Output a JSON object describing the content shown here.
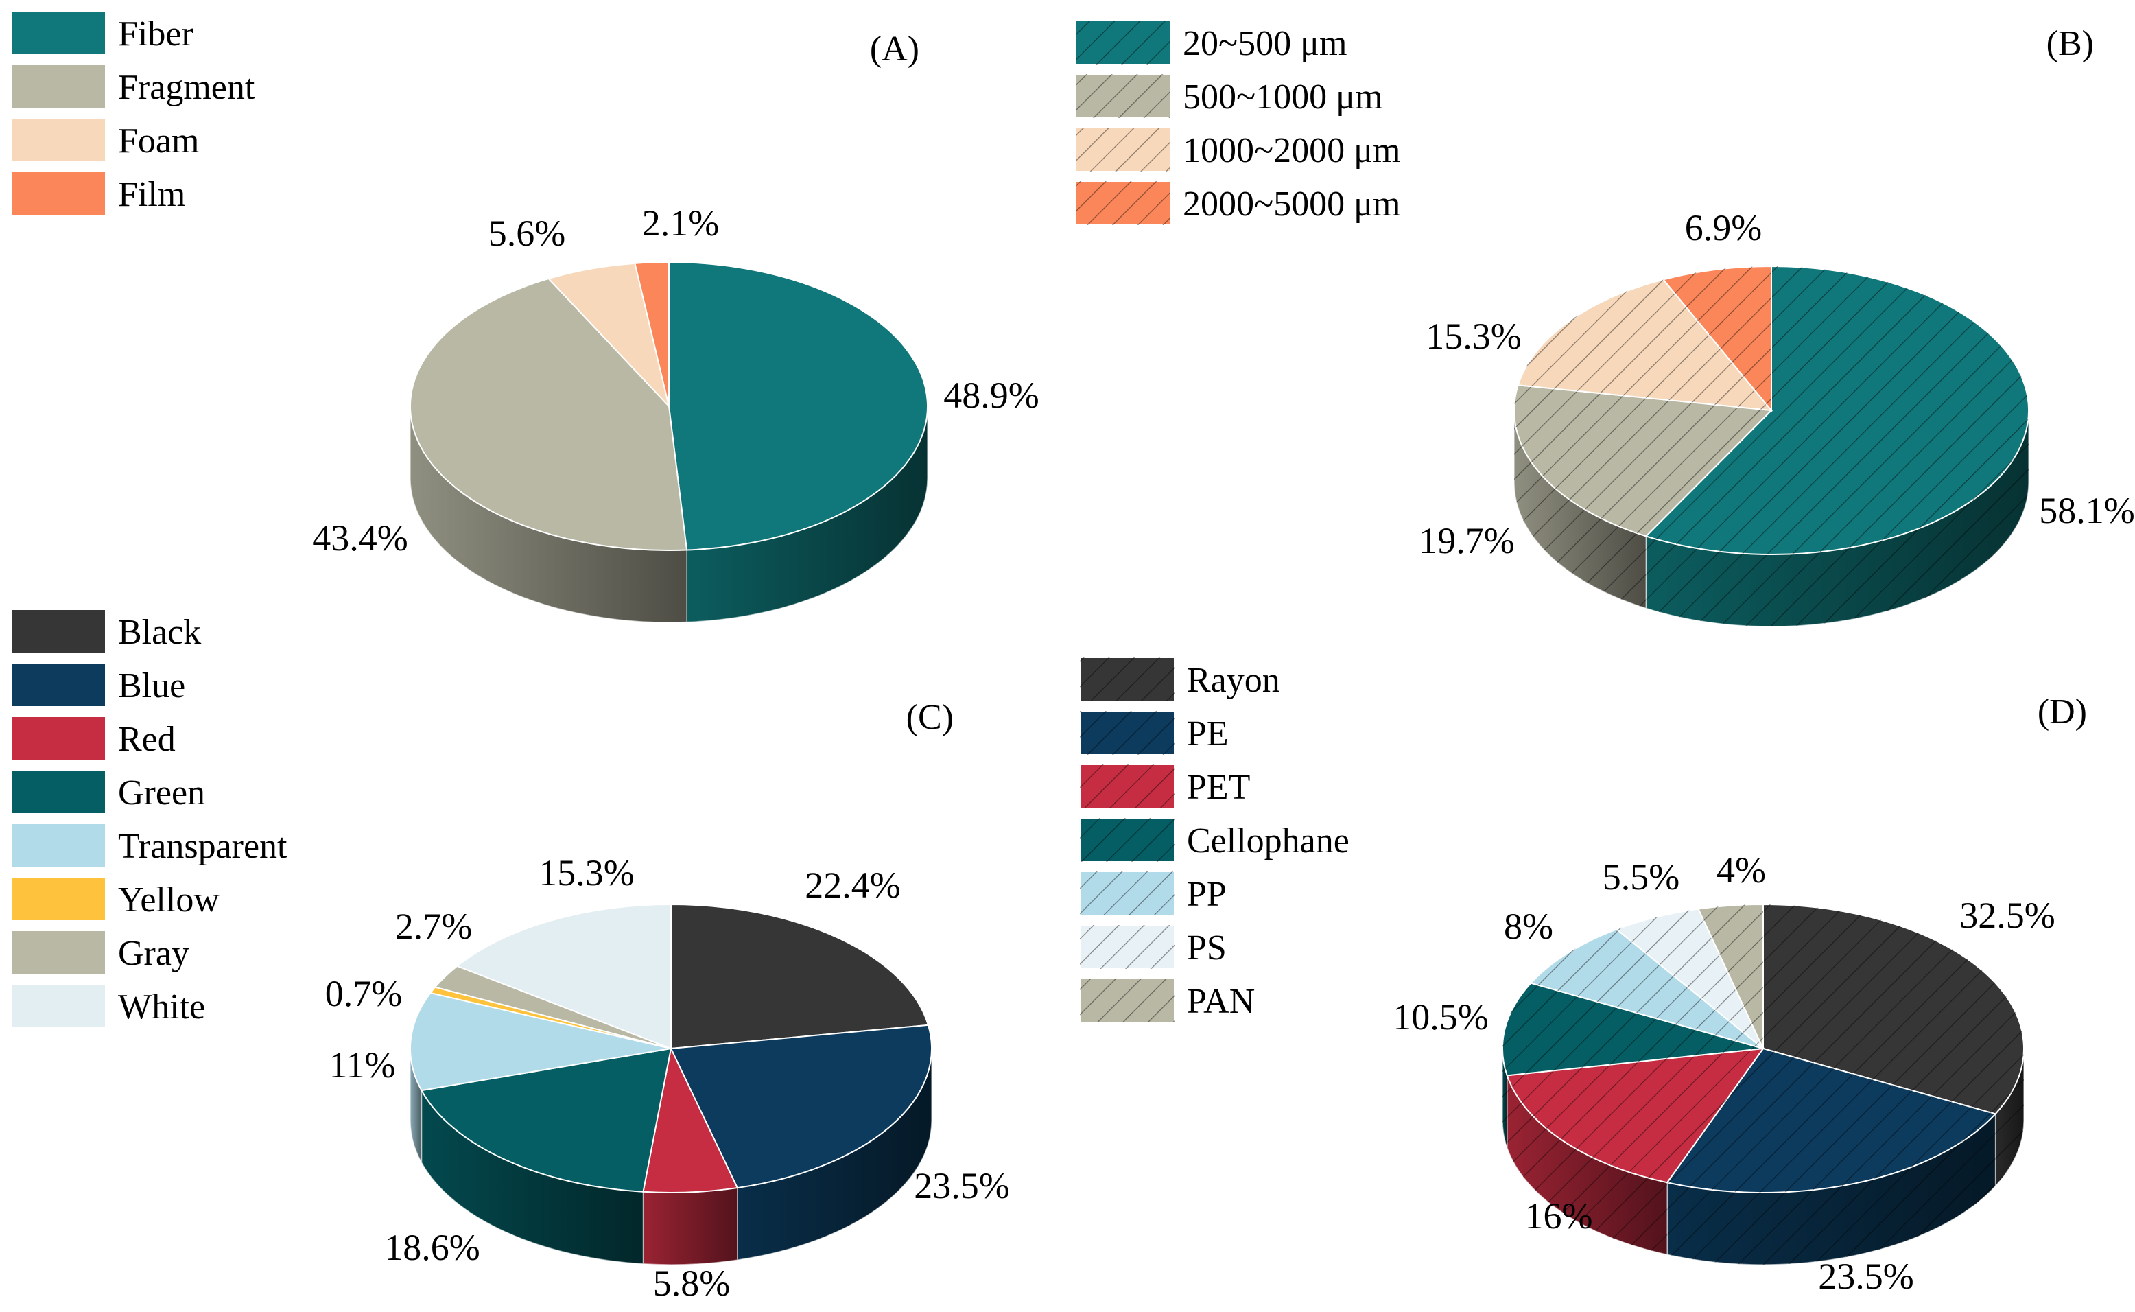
{
  "chart_data": [
    {
      "panel": "(A)",
      "type": "pie",
      "hatched": false,
      "categories": [
        "Fiber",
        "Fragment",
        "Foam",
        "Film"
      ],
      "values": [
        48.9,
        43.4,
        5.6,
        2.1
      ],
      "value_labels": [
        "48.9%",
        "43.4%",
        "5.6%",
        "2.1%"
      ],
      "colors": [
        "#10777a",
        "#b9b8a5",
        "#f7d8bb",
        "#fa8659"
      ],
      "legend_position": "top-left"
    },
    {
      "panel": "(B)",
      "type": "pie",
      "hatched": true,
      "categories": [
        "20~500 μm",
        "500~1000 μm",
        "1000~2000 μm",
        "2000~5000 μm"
      ],
      "values": [
        58.1,
        19.7,
        15.3,
        6.9
      ],
      "value_labels": [
        "58.1%",
        "19.7%",
        "15.3%",
        "6.9%"
      ],
      "colors": [
        "#10777a",
        "#b9b8a5",
        "#f7d8bb",
        "#fa8659"
      ],
      "legend_position": "top-center"
    },
    {
      "panel": "(C)",
      "type": "pie",
      "hatched": false,
      "categories": [
        "Black",
        "Blue",
        "Red",
        "Green",
        "Transparent",
        "Yellow",
        "Gray",
        "White"
      ],
      "values": [
        22.4,
        23.5,
        5.8,
        18.6,
        11,
        0.7,
        2.7,
        15.3
      ],
      "value_labels": [
        "22.4%",
        "23.5%",
        "5.8%",
        "18.6%",
        "11%",
        "0.7%",
        "2.7%",
        "15.3%"
      ],
      "colors": [
        "#363636",
        "#0c3b5e",
        "#c62d42",
        "#045e64",
        "#b2dbea",
        "#ffc23c",
        "#b9b8a5",
        "#e3eef3"
      ],
      "legend_position": "left"
    },
    {
      "panel": "(D)",
      "type": "pie",
      "hatched": true,
      "categories": [
        "Rayon",
        "PE",
        "PET",
        "Cellophane",
        "PP",
        "PS",
        "PAN"
      ],
      "values": [
        32.5,
        23.5,
        16,
        10.5,
        8,
        5.5,
        4
      ],
      "value_labels": [
        "32.5%",
        "23.5%",
        "16%",
        "10.5%",
        "8%",
        "5.5%",
        "4%"
      ],
      "colors": [
        "#363636",
        "#0c3b5e",
        "#c62d42",
        "#045e64",
        "#b2dbea",
        "#e8f1f5",
        "#b9b8a5"
      ],
      "legend_position": "center"
    }
  ]
}
